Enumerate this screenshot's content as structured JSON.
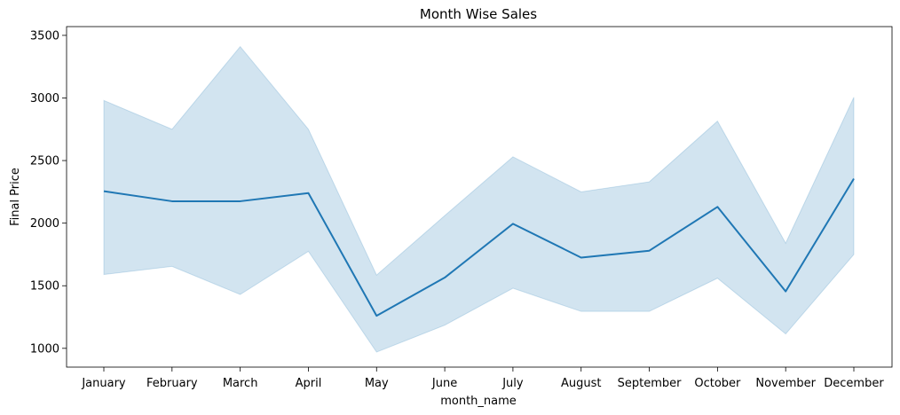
{
  "chart_data": {
    "type": "line",
    "title": "Month Wise Sales",
    "xlabel": "month_name",
    "ylabel": "Final Price",
    "categories": [
      "January",
      "February",
      "March",
      "April",
      "May",
      "June",
      "July",
      "August",
      "September",
      "October",
      "November",
      "December"
    ],
    "series": [
      {
        "values": [
          2255,
          2175,
          2175,
          2240,
          1260,
          1565,
          1995,
          1725,
          1780,
          2130,
          1455,
          2355
        ],
        "ci_upper": [
          2980,
          2750,
          3410,
          2750,
          1585,
          2060,
          2530,
          2250,
          2330,
          2815,
          1840,
          3005
        ],
        "ci_lower": [
          1590,
          1655,
          1430,
          1775,
          970,
          1185,
          1480,
          1295,
          1295,
          1560,
          1115,
          1750
        ]
      }
    ],
    "ylim": [
      850,
      3570
    ],
    "yticks": [
      1000,
      1500,
      2000,
      2500,
      3000,
      3500
    ],
    "grid": false,
    "line_color": "#1f77b4",
    "band_color": "#1f77b4"
  }
}
